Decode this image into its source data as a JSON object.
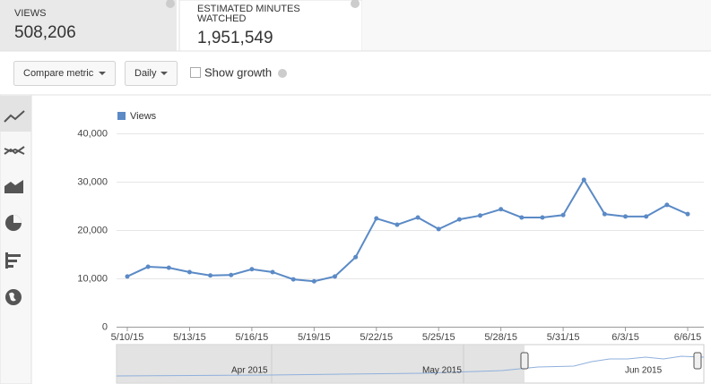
{
  "metrics": [
    {
      "label": "VIEWS",
      "value": "508,206"
    },
    {
      "label": "ESTIMATED MINUTES",
      "label_line2": "WATCHED",
      "value": "1,951,549"
    }
  ],
  "controls": {
    "compare": "Compare metric",
    "period": "Daily",
    "growth": "Show growth"
  },
  "navigator": {
    "labels": [
      "Apr 2015",
      "May 2015",
      "Jun 2015"
    ]
  },
  "chart_data": {
    "type": "line",
    "categories": [
      "5/10/15",
      null,
      null,
      "5/13/15",
      null,
      null,
      "5/16/15",
      null,
      null,
      "5/19/15",
      null,
      null,
      "5/22/15",
      null,
      null,
      "5/25/15",
      null,
      null,
      "5/28/15",
      null,
      null,
      "5/31/15",
      null,
      null,
      "6/3/15",
      null,
      null,
      "6/6/15"
    ],
    "series": [
      {
        "name": "Views",
        "color": "#5b8ac6",
        "values": [
          10400,
          12400,
          12200,
          11300,
          10600,
          10700,
          11900,
          11300,
          9800,
          9400,
          10400,
          14400,
          22400,
          21100,
          22600,
          20200,
          22200,
          23000,
          24300,
          22600,
          22600,
          23100,
          30400,
          23300,
          22800,
          22800,
          25200,
          23300
        ]
      }
    ],
    "ylim": [
      0,
      40000
    ],
    "yticks": [
      0,
      {
        "value": 10000,
        "label": "10,000"
      },
      {
        "value": 20000,
        "label": "20,000"
      },
      {
        "value": 30000,
        "label": "30,000"
      },
      {
        "value": 40000,
        "label": "40,000"
      }
    ],
    "grid": true
  }
}
